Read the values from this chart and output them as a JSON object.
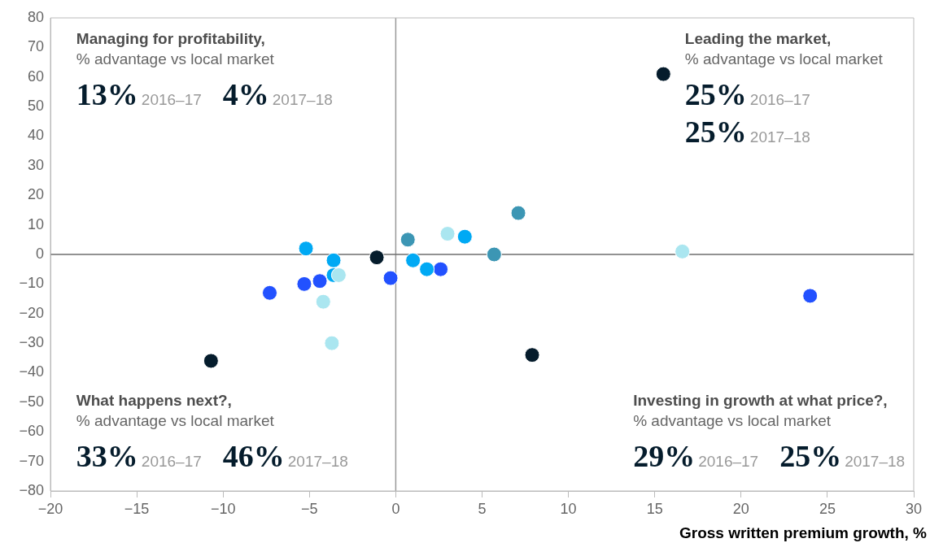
{
  "chart_data": {
    "type": "scatter",
    "xlabel": "Gross written premium growth, %",
    "marker": "circle",
    "legend": false,
    "grid": false,
    "xlim": [
      -20,
      30
    ],
    "xticks": [
      -20,
      -15,
      -10,
      -5,
      0,
      5,
      10,
      15,
      20,
      25,
      30
    ],
    "ylim": [
      -80,
      80
    ],
    "yticks": [
      -80,
      -70,
      -60,
      -50,
      -40,
      -30,
      -20,
      -10,
      0,
      10,
      20,
      30,
      40,
      50,
      60,
      70,
      80
    ],
    "ref_lines": [
      {
        "axis": "x",
        "value": 0,
        "color": "#999999"
      },
      {
        "axis": "y",
        "value": 0,
        "color": "#6e6e6e"
      }
    ],
    "series": [
      {
        "color": "#051c2c",
        "x": [
          -1.1,
          15.5,
          7.9,
          -10.7
        ],
        "values": [
          -1,
          61,
          -34,
          -36
        ]
      },
      {
        "color": "#2251ff",
        "x": [
          -7.3,
          -5.3,
          -4.4,
          -0.3,
          2.6,
          24.0
        ],
        "values": [
          -13,
          -10,
          -9,
          -8,
          -5,
          -14
        ]
      },
      {
        "color": "#00a9f4",
        "x": [
          -5.2,
          -3.6,
          -3.6,
          1.0,
          1.8,
          4.0
        ],
        "values": [
          2,
          -2,
          -7,
          -2,
          -5,
          6
        ]
      },
      {
        "color": "#3c96b4",
        "x": [
          0.7,
          7.1,
          5.7
        ],
        "values": [
          5,
          14,
          0
        ]
      },
      {
        "color": "#aae6f0",
        "x": [
          -3.3,
          -4.2,
          -3.7,
          3.0,
          16.6
        ],
        "values": [
          -7,
          -16,
          -30,
          7,
          1
        ]
      }
    ],
    "annotations": [
      "Managing for profitability,",
      "% advantage vs local market",
      "13%",
      "2016–17",
      "4%",
      "2017–18",
      "Leading the market,",
      "% advantage vs local market",
      "25%",
      "2016–17",
      "25%",
      "2017–18",
      "What happens next?,",
      "% advantage vs local market",
      "33%",
      "2016–17",
      "46%",
      "2017–18",
      "Investing in growth at what price?,",
      "% advantage vs local market",
      "29%",
      "2016–17",
      "25%",
      "2017–18"
    ]
  }
}
